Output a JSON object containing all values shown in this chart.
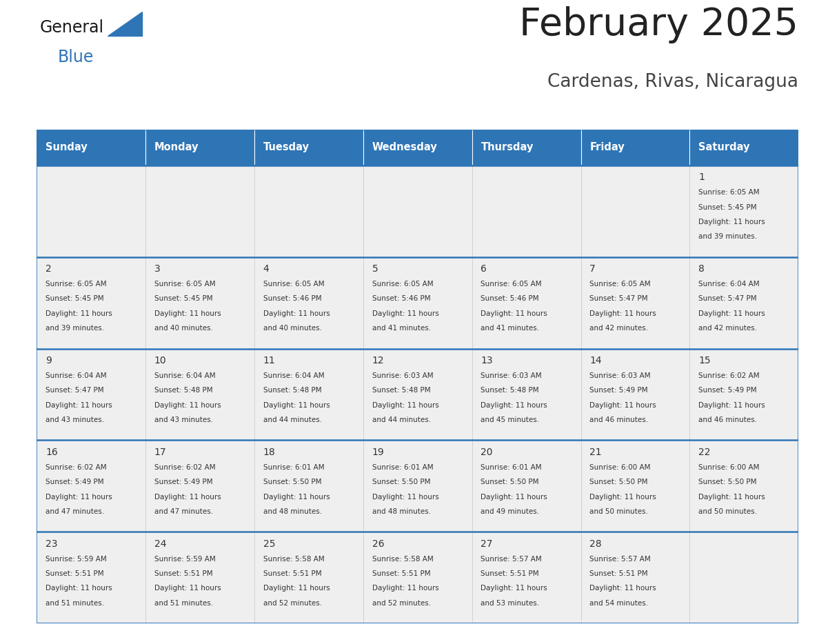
{
  "title": "February 2025",
  "subtitle": "Cardenas, Rivas, Nicaragua",
  "days_of_week": [
    "Sunday",
    "Monday",
    "Tuesday",
    "Wednesday",
    "Thursday",
    "Friday",
    "Saturday"
  ],
  "header_bg_color": "#2E75B6",
  "header_text_color": "#FFFFFF",
  "cell_border_color": "#2E75B6",
  "week_line_color": "#2E75B6",
  "day_number_color": "#333333",
  "info_text_color": "#333333",
  "cell_bg_color": "#EFEFEF",
  "bg_color": "#FFFFFF",
  "title_color": "#222222",
  "subtitle_color": "#444444",
  "logo_general_color": "#1a1a1a",
  "logo_blue_color": "#2E75B6",
  "calendar_data": [
    [
      null,
      null,
      null,
      null,
      null,
      null,
      {
        "day": 1,
        "sunrise": "6:05 AM",
        "sunset": "5:45 PM",
        "daylight_hours": 11,
        "daylight_minutes": 39
      }
    ],
    [
      {
        "day": 2,
        "sunrise": "6:05 AM",
        "sunset": "5:45 PM",
        "daylight_hours": 11,
        "daylight_minutes": 39
      },
      {
        "day": 3,
        "sunrise": "6:05 AM",
        "sunset": "5:45 PM",
        "daylight_hours": 11,
        "daylight_minutes": 40
      },
      {
        "day": 4,
        "sunrise": "6:05 AM",
        "sunset": "5:46 PM",
        "daylight_hours": 11,
        "daylight_minutes": 40
      },
      {
        "day": 5,
        "sunrise": "6:05 AM",
        "sunset": "5:46 PM",
        "daylight_hours": 11,
        "daylight_minutes": 41
      },
      {
        "day": 6,
        "sunrise": "6:05 AM",
        "sunset": "5:46 PM",
        "daylight_hours": 11,
        "daylight_minutes": 41
      },
      {
        "day": 7,
        "sunrise": "6:05 AM",
        "sunset": "5:47 PM",
        "daylight_hours": 11,
        "daylight_minutes": 42
      },
      {
        "day": 8,
        "sunrise": "6:04 AM",
        "sunset": "5:47 PM",
        "daylight_hours": 11,
        "daylight_minutes": 42
      }
    ],
    [
      {
        "day": 9,
        "sunrise": "6:04 AM",
        "sunset": "5:47 PM",
        "daylight_hours": 11,
        "daylight_minutes": 43
      },
      {
        "day": 10,
        "sunrise": "6:04 AM",
        "sunset": "5:48 PM",
        "daylight_hours": 11,
        "daylight_minutes": 43
      },
      {
        "day": 11,
        "sunrise": "6:04 AM",
        "sunset": "5:48 PM",
        "daylight_hours": 11,
        "daylight_minutes": 44
      },
      {
        "day": 12,
        "sunrise": "6:03 AM",
        "sunset": "5:48 PM",
        "daylight_hours": 11,
        "daylight_minutes": 44
      },
      {
        "day": 13,
        "sunrise": "6:03 AM",
        "sunset": "5:48 PM",
        "daylight_hours": 11,
        "daylight_minutes": 45
      },
      {
        "day": 14,
        "sunrise": "6:03 AM",
        "sunset": "5:49 PM",
        "daylight_hours": 11,
        "daylight_minutes": 46
      },
      {
        "day": 15,
        "sunrise": "6:02 AM",
        "sunset": "5:49 PM",
        "daylight_hours": 11,
        "daylight_minutes": 46
      }
    ],
    [
      {
        "day": 16,
        "sunrise": "6:02 AM",
        "sunset": "5:49 PM",
        "daylight_hours": 11,
        "daylight_minutes": 47
      },
      {
        "day": 17,
        "sunrise": "6:02 AM",
        "sunset": "5:49 PM",
        "daylight_hours": 11,
        "daylight_minutes": 47
      },
      {
        "day": 18,
        "sunrise": "6:01 AM",
        "sunset": "5:50 PM",
        "daylight_hours": 11,
        "daylight_minutes": 48
      },
      {
        "day": 19,
        "sunrise": "6:01 AM",
        "sunset": "5:50 PM",
        "daylight_hours": 11,
        "daylight_minutes": 48
      },
      {
        "day": 20,
        "sunrise": "6:01 AM",
        "sunset": "5:50 PM",
        "daylight_hours": 11,
        "daylight_minutes": 49
      },
      {
        "day": 21,
        "sunrise": "6:00 AM",
        "sunset": "5:50 PM",
        "daylight_hours": 11,
        "daylight_minutes": 50
      },
      {
        "day": 22,
        "sunrise": "6:00 AM",
        "sunset": "5:50 PM",
        "daylight_hours": 11,
        "daylight_minutes": 50
      }
    ],
    [
      {
        "day": 23,
        "sunrise": "5:59 AM",
        "sunset": "5:51 PM",
        "daylight_hours": 11,
        "daylight_minutes": 51
      },
      {
        "day": 24,
        "sunrise": "5:59 AM",
        "sunset": "5:51 PM",
        "daylight_hours": 11,
        "daylight_minutes": 51
      },
      {
        "day": 25,
        "sunrise": "5:58 AM",
        "sunset": "5:51 PM",
        "daylight_hours": 11,
        "daylight_minutes": 52
      },
      {
        "day": 26,
        "sunrise": "5:58 AM",
        "sunset": "5:51 PM",
        "daylight_hours": 11,
        "daylight_minutes": 52
      },
      {
        "day": 27,
        "sunrise": "5:57 AM",
        "sunset": "5:51 PM",
        "daylight_hours": 11,
        "daylight_minutes": 53
      },
      {
        "day": 28,
        "sunrise": "5:57 AM",
        "sunset": "5:51 PM",
        "daylight_hours": 11,
        "daylight_minutes": 54
      },
      null
    ]
  ]
}
